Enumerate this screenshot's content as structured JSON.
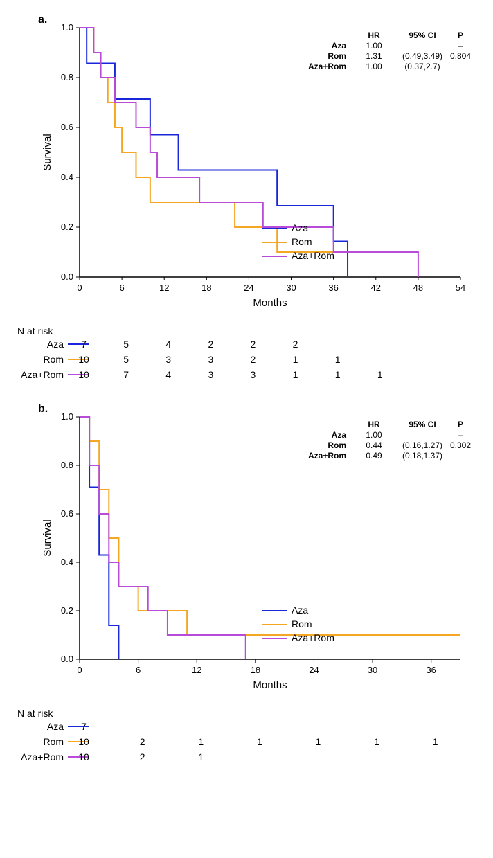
{
  "colors": {
    "aza": "#1a27d8",
    "rom": "#f5a623",
    "azarom": "#b84cd8",
    "axis": "#000000",
    "bg": "#ffffff"
  },
  "font": {
    "family": "Arial",
    "axis_label_pt": 14,
    "tick_pt": 13,
    "legend_pt": 14,
    "stats_pt": 12
  },
  "panel_a": {
    "label": "a.",
    "ylabel": "Survival",
    "xlabel": "Months",
    "xlim": [
      0,
      54
    ],
    "xtick_step": 6,
    "ylim": [
      0,
      1.0
    ],
    "ytick_step": 0.2,
    "line_width": 2,
    "series": [
      {
        "name": "Aza",
        "color": "#1a27d8",
        "steps": [
          [
            0,
            1.0
          ],
          [
            1,
            0.857
          ],
          [
            5,
            0.714
          ],
          [
            10,
            0.571
          ],
          [
            14,
            0.429
          ],
          [
            28,
            0.286
          ],
          [
            36,
            0.143
          ],
          [
            38,
            0.0
          ]
        ]
      },
      {
        "name": "Rom",
        "color": "#f5a623",
        "steps": [
          [
            0,
            1.0
          ],
          [
            2,
            0.9
          ],
          [
            3,
            0.8
          ],
          [
            4,
            0.7
          ],
          [
            5,
            0.6
          ],
          [
            6,
            0.5
          ],
          [
            8,
            0.4
          ],
          [
            10,
            0.3
          ],
          [
            22,
            0.2
          ],
          [
            28,
            0.1
          ],
          [
            46,
            0.1
          ]
        ]
      },
      {
        "name": "Aza+Rom",
        "color": "#b84cd8",
        "steps": [
          [
            0,
            1.0
          ],
          [
            2,
            0.9
          ],
          [
            3,
            0.8
          ],
          [
            5,
            0.7
          ],
          [
            8,
            0.6
          ],
          [
            10,
            0.5
          ],
          [
            11,
            0.4
          ],
          [
            17,
            0.3
          ],
          [
            26,
            0.2
          ],
          [
            36,
            0.1
          ],
          [
            48,
            0.0
          ]
        ]
      }
    ],
    "legend": {
      "position": "lower-inside",
      "items": [
        "Aza",
        "Rom",
        "Aza+Rom"
      ]
    },
    "stats": {
      "header": [
        "",
        "HR",
        "95% CI",
        "P"
      ],
      "rows": [
        [
          "Aza",
          "1.00",
          "",
          "–"
        ],
        [
          "Rom",
          "1.31",
          "(0.49,3.49)",
          "0.804"
        ],
        [
          "Aza+Rom",
          "1.00",
          "(0.37,2.7)",
          ""
        ]
      ]
    },
    "risk_header": "N at risk",
    "risk": [
      {
        "label": "Aza",
        "color": "#1a27d8",
        "values": [
          "7",
          "5",
          "4",
          "2",
          "2",
          "2",
          "",
          "",
          ""
        ]
      },
      {
        "label": "Rom",
        "color": "#f5a623",
        "values": [
          "10",
          "5",
          "3",
          "3",
          "2",
          "1",
          "1",
          "",
          ""
        ]
      },
      {
        "label": "Aza+Rom",
        "color": "#b84cd8",
        "values": [
          "10",
          "7",
          "4",
          "3",
          "3",
          "1",
          "1",
          "1",
          ""
        ]
      }
    ]
  },
  "panel_b": {
    "label": "b.",
    "ylabel": "Survival",
    "xlabel": "Months",
    "xlim": [
      0,
      39
    ],
    "xtick_step": 6,
    "ylim": [
      0,
      1.0
    ],
    "ytick_step": 0.2,
    "line_width": 2,
    "series": [
      {
        "name": "Aza",
        "color": "#1a27d8",
        "steps": [
          [
            0,
            1.0
          ],
          [
            1,
            0.71
          ],
          [
            2,
            0.43
          ],
          [
            3,
            0.14
          ],
          [
            4,
            0.0
          ]
        ]
      },
      {
        "name": "Rom",
        "color": "#f5a623",
        "steps": [
          [
            0,
            1.0
          ],
          [
            1,
            0.9
          ],
          [
            2,
            0.7
          ],
          [
            3,
            0.5
          ],
          [
            4,
            0.3
          ],
          [
            6,
            0.2
          ],
          [
            11,
            0.1
          ],
          [
            39,
            0.1
          ]
        ]
      },
      {
        "name": "Aza+Rom",
        "color": "#b84cd8",
        "steps": [
          [
            0,
            1.0
          ],
          [
            1,
            0.8
          ],
          [
            2,
            0.6
          ],
          [
            3,
            0.4
          ],
          [
            4,
            0.3
          ],
          [
            7,
            0.2
          ],
          [
            9,
            0.1
          ],
          [
            17,
            0.0
          ]
        ]
      }
    ],
    "legend": {
      "position": "lower-inside",
      "items": [
        "Aza",
        "Rom",
        "Aza+Rom"
      ]
    },
    "stats": {
      "header": [
        "",
        "HR",
        "95% CI",
        "P"
      ],
      "rows": [
        [
          "Aza",
          "1.00",
          "",
          "–"
        ],
        [
          "Rom",
          "0.44",
          "(0.16,1.27)",
          "0.302"
        ],
        [
          "Aza+Rom",
          "0.49",
          "(0.18,1.37)",
          ""
        ]
      ]
    },
    "risk_header": "N at risk",
    "risk": [
      {
        "label": "Aza",
        "color": "#1a27d8",
        "values": [
          "7",
          "",
          "",
          "",
          "",
          "",
          ""
        ]
      },
      {
        "label": "Rom",
        "color": "#f5a623",
        "values": [
          "10",
          "2",
          "1",
          "1",
          "1",
          "1",
          "1"
        ]
      },
      {
        "label": "Aza+Rom",
        "color": "#b84cd8",
        "values": [
          "10",
          "2",
          "1",
          "",
          "",
          "",
          ""
        ]
      }
    ]
  }
}
